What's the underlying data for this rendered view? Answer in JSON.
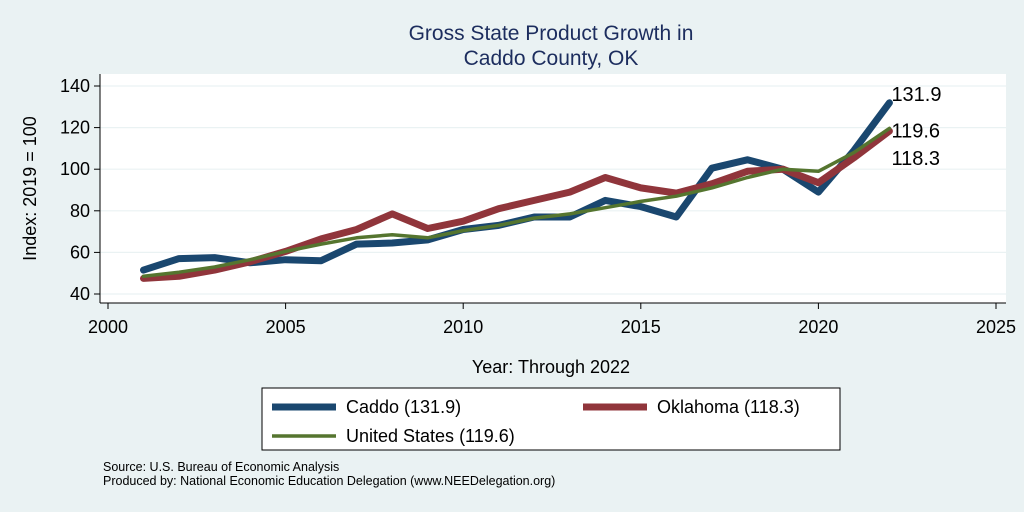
{
  "chart_data": {
    "type": "line",
    "title": [
      "Gross State Product Growth in",
      "Caddo County, OK"
    ],
    "xlabel": "Year: Through 2022",
    "ylabel": "Index: 2019 = 100",
    "xlim": [
      2000,
      2025
    ],
    "ylim": [
      40,
      145
    ],
    "xticks": [
      2000,
      2005,
      2010,
      2015,
      2020,
      2025
    ],
    "yticks": [
      40,
      60,
      80,
      100,
      120,
      140
    ],
    "grid": true,
    "x": [
      2001,
      2002,
      2003,
      2004,
      2005,
      2006,
      2007,
      2008,
      2009,
      2010,
      2011,
      2012,
      2013,
      2014,
      2015,
      2016,
      2017,
      2018,
      2019,
      2020,
      2021,
      2022
    ],
    "series": [
      {
        "name": "Caddo",
        "legend_label": "Caddo  (131.9)",
        "color": "#1a476f",
        "end_label": "131.9",
        "values": [
          51.5,
          57,
          57.5,
          55,
          56.5,
          56,
          64,
          64.5,
          66,
          71,
          73,
          77,
          77,
          85,
          82,
          77,
          100.5,
          104.5,
          100,
          89,
          109,
          131.9
        ]
      },
      {
        "name": "Oklahoma",
        "legend_label": "Oklahoma (118.3)",
        "color": "#90353b",
        "end_label": "118.3",
        "values": [
          47.5,
          48.5,
          51.5,
          55.5,
          60.5,
          66.5,
          71,
          78.5,
          71.5,
          75,
          81,
          85,
          89,
          96,
          91,
          88.5,
          93,
          99,
          100,
          93.5,
          105.5,
          118.3
        ]
      },
      {
        "name": "United States",
        "legend_label": "United States (119.6)",
        "color": "#55752f",
        "end_label": "119.6",
        "values": [
          48.5,
          50.5,
          53,
          56.5,
          60.5,
          64,
          67,
          68.5,
          67,
          70.5,
          73,
          76.5,
          78.5,
          81.5,
          84.5,
          87,
          91,
          96,
          100,
          99,
          108,
          119.6
        ]
      }
    ],
    "legend_position": "bottom",
    "source_lines": [
      "Source: U.S. Bureau of Economic Analysis",
      "Produced by: National Economic Education Delegation (www.NEEDelegation.org)"
    ]
  }
}
